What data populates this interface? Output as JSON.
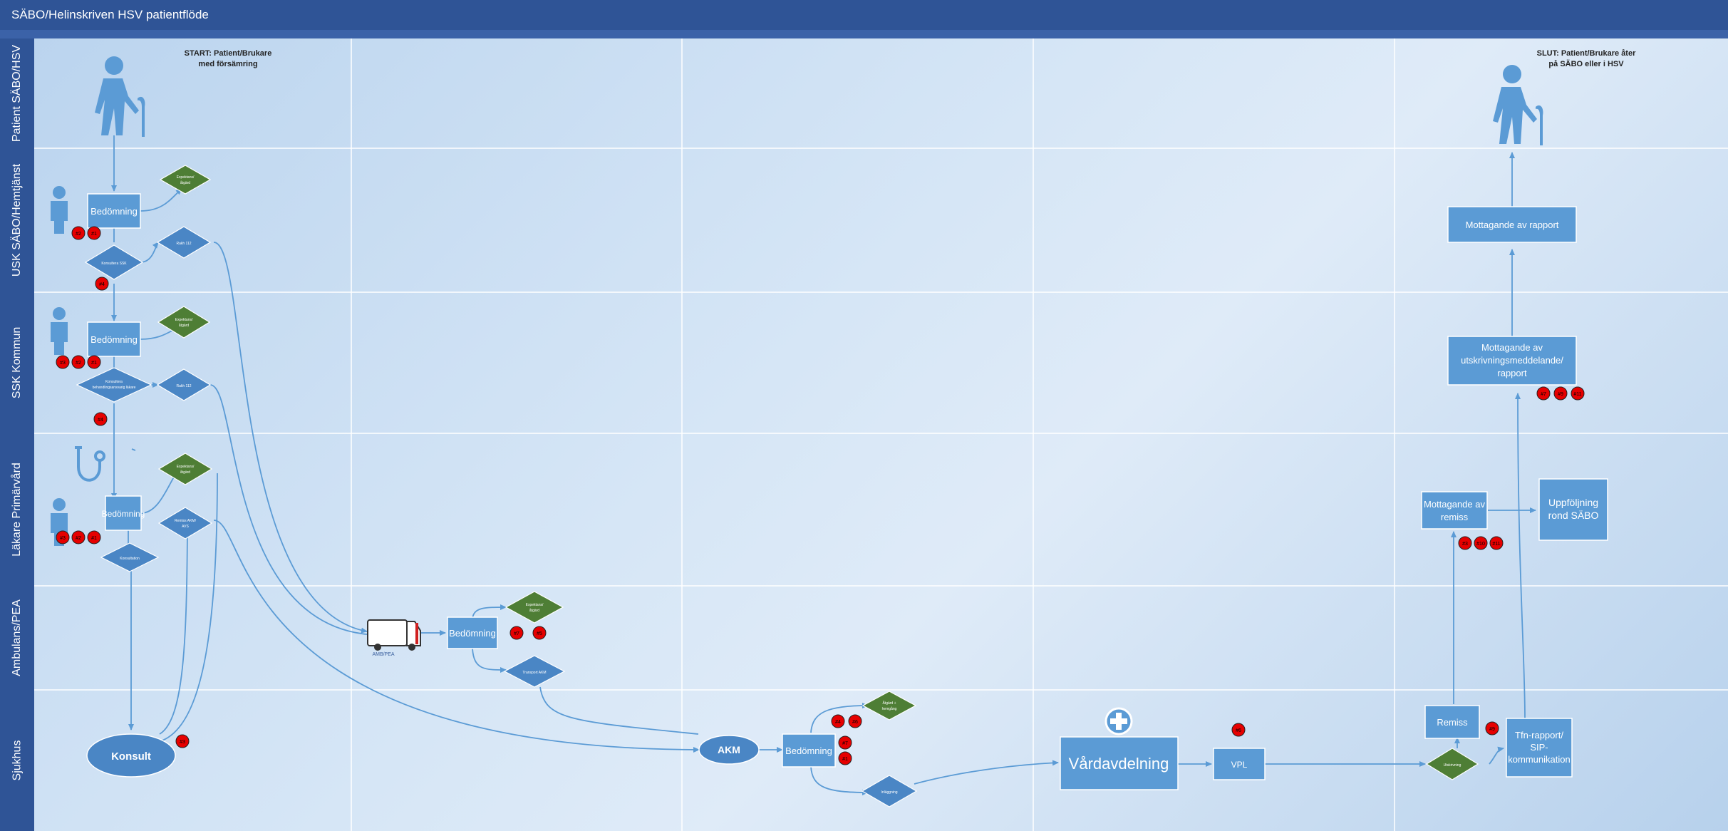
{
  "title": "SÄBO/Helinskriven HSV patientflöde",
  "lanes": [
    {
      "label": "Patient SÄBO/HSV"
    },
    {
      "label": "USK SÄBO/Hemtjänst"
    },
    {
      "label": "SSK Kommun"
    },
    {
      "label": "Läkare Primärvård"
    },
    {
      "label": "Ambulans/PEA"
    },
    {
      "label": "Sjukhus"
    }
  ],
  "start_text": [
    "START: Patient/Brukare",
    "med försämring"
  ],
  "end_text": [
    "SLUT: Patient/Brukare åter",
    "på SÄBO eller i HSV"
  ],
  "boxes": {
    "bed_usk": "Bedömning",
    "bed_ssk": "Bedömning",
    "bed_lak": "Bedömning",
    "bed_amb": "Bedömning",
    "bed_akm": "Bedömning",
    "mott_rapport": "Mottagande av rapport",
    "mott_utskr": [
      "Mottagande av",
      "utskrivningsmeddelande/",
      "rapport"
    ],
    "mott_remiss": [
      "Mottagande av",
      "remiss"
    ],
    "uppfoljning": [
      "Uppföljning",
      "rond SÄBO"
    ],
    "vardavdelning": "Vårdavdelning",
    "vpl": "VPL",
    "remiss": "Remiss",
    "tfn": [
      "Tfn-rapport/",
      "SIP-",
      "kommunikation"
    ]
  },
  "diamonds": {
    "exp_usk": [
      "Expektans/",
      "åtgärd"
    ],
    "kons_ssk": "Konsultera SSK",
    "rakh_usk": "Rakh 112",
    "exp_ssk": [
      "Expektans/",
      "åtgärd"
    ],
    "kons_ssk2": [
      "Konsultera",
      "behandlingsansvarig läkare"
    ],
    "rakh_ssk": "Rakh 112",
    "exp_lak": [
      "Expektans/",
      "åtgärd"
    ],
    "remiss_akm": [
      "Remiss AKM/",
      "AVS"
    ],
    "konsultation": "Konsultation",
    "exp_amb": [
      "Expektans/",
      "åtgärd"
    ],
    "transport": "Transport AKM",
    "atgard_hemgang": [
      "Åtgärd +",
      "hemgång"
    ],
    "inlaggning": "Inläggning",
    "utskrivning": "Utskrivning"
  },
  "ellipses": {
    "konsult": "Konsult",
    "akm": "AKM"
  },
  "ambulance_label": "AMB/PEA",
  "badges": {
    "usk": [
      "#2",
      "#1"
    ],
    "usk2": [
      "#4"
    ],
    "ssk": [
      "#3",
      "#2",
      "#1"
    ],
    "ssk2": [
      "#4"
    ],
    "lak": [
      "#3",
      "#2",
      "#1"
    ],
    "amb": [
      "#7",
      "#5"
    ],
    "konsult": [
      "#3"
    ],
    "akm": [
      "#4",
      "#6",
      "#7",
      "#1"
    ],
    "vpl": [
      "#6"
    ],
    "remiss": [
      "#9"
    ],
    "mott_utskr": [
      "#7",
      "#9",
      "#11"
    ],
    "mott_remiss": [
      "#3",
      "#10",
      "#11"
    ]
  },
  "colors": {
    "box": "#5b9bd5",
    "diamond_blue": "#4a86c5",
    "diamond_green": "#4e7e35",
    "badge": "#e60000",
    "line": "#5b9bd5",
    "lane_header": "#2f5496"
  }
}
